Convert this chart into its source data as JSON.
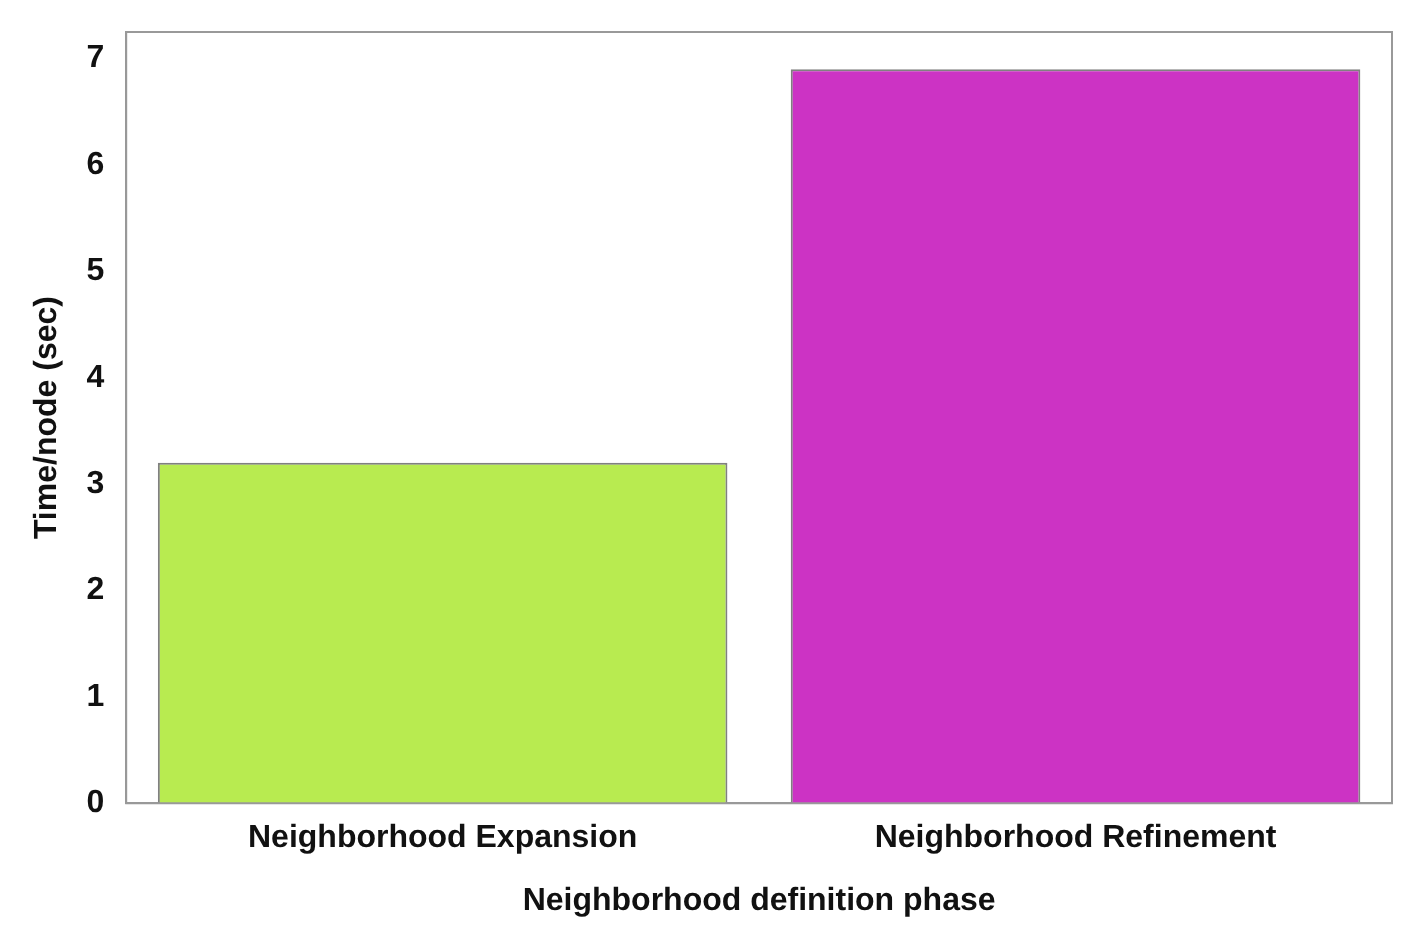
{
  "chart_data": {
    "type": "bar",
    "xlabel": "Neighborhood definition phase",
    "ylabel": "Time/node (sec)",
    "categories": [
      "Neighborhood Expansion",
      "Neighborhood Refinement"
    ],
    "values": [
      3.2,
      6.9
    ],
    "colors": [
      "#b8eb50",
      "#cc33c4"
    ],
    "ylim": [
      0,
      7.25
    ],
    "yticks": [
      0,
      1,
      2,
      3,
      4,
      5,
      6,
      7
    ],
    "grid": false,
    "legend": false
  }
}
